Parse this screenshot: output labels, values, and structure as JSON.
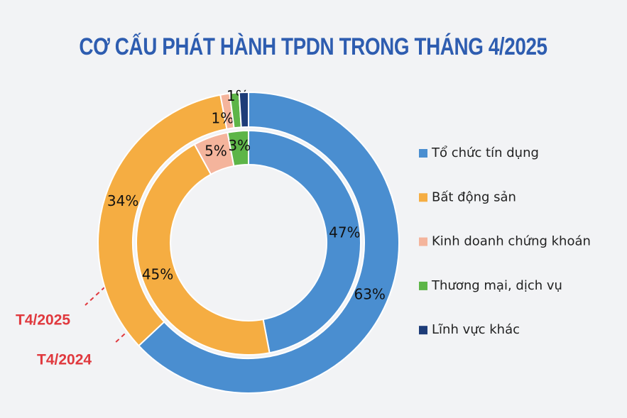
{
  "chart_data": {
    "type": "donut",
    "title": "CƠ CẤU PHÁT HÀNH TPDN TRONG THÁNG 4/2025",
    "categories": [
      "Tổ chức tín dụng",
      "Bất động sản",
      "Kinh doanh chứng khoán",
      "Thương mại, dịch vụ",
      "Lĩnh vực khác"
    ],
    "colors": [
      "#4a8ed0",
      "#f5ad42",
      "#f4b49c",
      "#5db548",
      "#1d3c78"
    ],
    "series": [
      {
        "name": "T4/2025",
        "values": [
          63,
          34,
          1,
          1,
          1
        ],
        "value_labels": [
          "63%",
          "34%",
          "1%",
          "1%",
          null
        ]
      },
      {
        "name": "T4/2024",
        "values": [
          47,
          45,
          5,
          3,
          null
        ],
        "value_labels": [
          "47%",
          "45%",
          "5%",
          "3%",
          null
        ]
      }
    ]
  }
}
